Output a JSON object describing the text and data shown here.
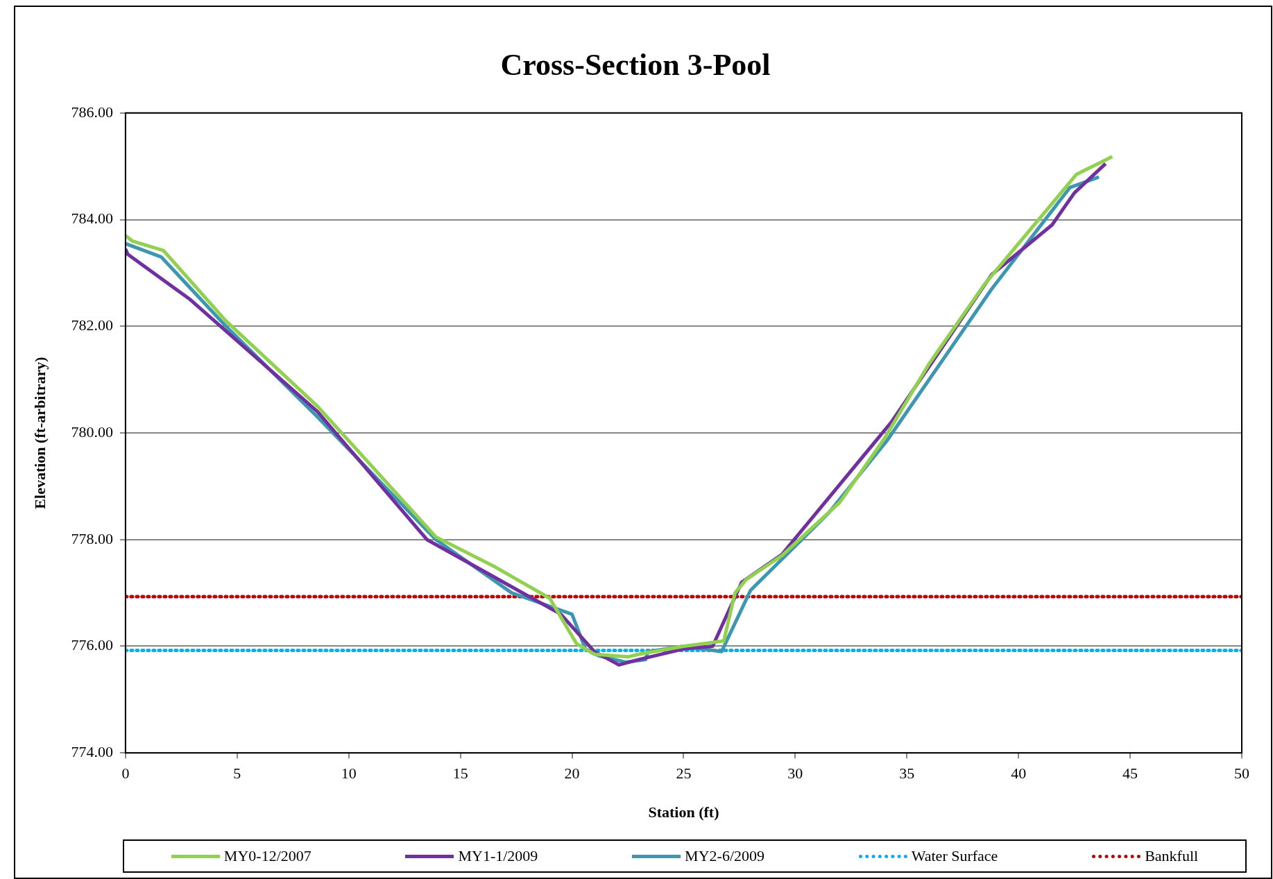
{
  "chart_data": {
    "type": "line",
    "title": "Cross-Section 3-Pool",
    "xlabel": "Station (ft)",
    "ylabel": "Elevation (ft-arbitrary)",
    "xlim": [
      0,
      50
    ],
    "xticks": [
      0,
      5,
      10,
      15,
      20,
      25,
      30,
      35,
      40,
      45,
      50
    ],
    "ylim": [
      774,
      786
    ],
    "yticks": [
      {
        "value": 774,
        "label": "774.00"
      },
      {
        "value": 776,
        "label": "776.00"
      },
      {
        "value": 778,
        "label": "778.00"
      },
      {
        "value": 780,
        "label": "780.00"
      },
      {
        "value": 782,
        "label": "782.00"
      },
      {
        "value": 784,
        "label": "784.00"
      },
      {
        "value": 786,
        "label": "786.00"
      }
    ],
    "grid": "y",
    "legend": "bottom",
    "marker": "none",
    "series": [
      {
        "name": "MY0-12/2007",
        "color": "#92d050",
        "x": [
          0,
          0.3,
          1.7,
          4.5,
          8.6,
          13.9,
          16.5,
          19.0,
          20.2,
          21,
          22.5,
          23,
          25,
          26.8,
          27.3,
          27.8,
          29.4,
          32,
          34,
          36,
          38.5,
          40.5,
          42.6,
          44.2
        ],
        "values": [
          783.7,
          783.6,
          783.42,
          782.1,
          780.5,
          778.05,
          777.5,
          776.9,
          776.05,
          775.85,
          775.8,
          775.85,
          776.0,
          776.1,
          777.0,
          777.25,
          777.7,
          778.7,
          779.9,
          781.3,
          782.8,
          783.8,
          784.85,
          785.18
        ]
      },
      {
        "name": "MY1-1/2009",
        "color": "#7030a0",
        "x": [
          0,
          0.1,
          2.9,
          8.6,
          13.5,
          16.5,
          19.5,
          21,
          22.1,
          23,
          25,
          26.3,
          27.6,
          29.4,
          34.3,
          38.8,
          41.5,
          42.5,
          43.9
        ],
        "values": [
          783.45,
          783.35,
          782.5,
          780.4,
          778.0,
          777.3,
          776.6,
          775.9,
          775.65,
          775.75,
          775.95,
          776.0,
          777.2,
          777.72,
          780.2,
          782.97,
          783.9,
          784.5,
          785.05
        ]
      },
      {
        "name": "MY2-6/2009",
        "color": "#3d97b0",
        "x": [
          0,
          1.6,
          4.5,
          8.6,
          13.9,
          17.3,
          20,
          20.6,
          21.2,
          22.4,
          23.3,
          23.4,
          25,
          26.7,
          28.0,
          31.5,
          34.1,
          38.8,
          42.3,
          43.6
        ],
        "values": [
          783.55,
          783.3,
          782.0,
          780.3,
          778.0,
          777.0,
          776.6,
          775.95,
          775.82,
          775.7,
          775.75,
          775.9,
          776.0,
          775.9,
          777.05,
          778.5,
          779.85,
          782.7,
          784.6,
          784.8
        ]
      },
      {
        "name": "Water Surface",
        "color": "#00b0f0",
        "line_style": "dotted",
        "x": [
          0,
          50
        ],
        "values": [
          775.92,
          775.92
        ]
      },
      {
        "name": "Bankfull",
        "color": "#c00000",
        "line_style": "dotted",
        "x": [
          0,
          50
        ],
        "values": [
          776.93,
          776.93
        ]
      }
    ]
  }
}
